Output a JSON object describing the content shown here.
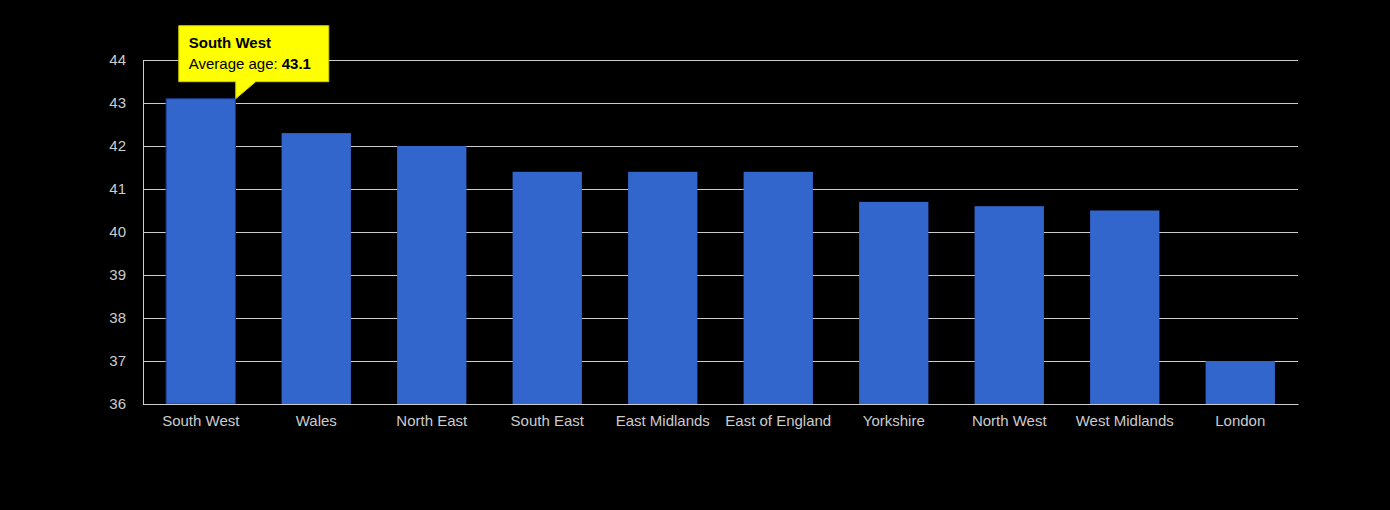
{
  "chart_data": {
    "type": "bar",
    "categories": [
      "South West",
      "Wales",
      "North East",
      "South East",
      "East Midlands",
      "East of England",
      "Yorkshire",
      "North West",
      "West Midlands",
      "London"
    ],
    "values": [
      43.1,
      42.3,
      42.0,
      41.4,
      41.4,
      41.4,
      40.7,
      40.6,
      40.5,
      37.0
    ],
    "color": "#3366cc",
    "ylim": [
      36,
      44
    ],
    "yticks": [
      36,
      37,
      38,
      39,
      40,
      41,
      42,
      43,
      44
    ],
    "grid": true,
    "annotation": "Average age:"
  }
}
